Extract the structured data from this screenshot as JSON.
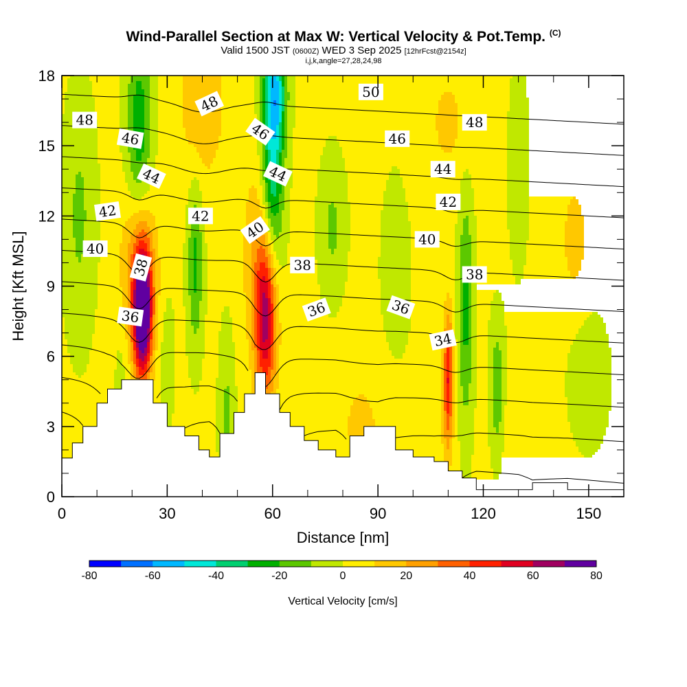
{
  "header": {
    "title": "Wind-Parallel Section at Max W: Vertical Velocity & Pot.Temp.",
    "copyright": "(C)",
    "valid_prefix": "Valid 1500 JST",
    "valid_utc": "(0600Z)",
    "valid_date": "WED 3 Sep 2025",
    "forecast": "[12hrFcst@2154z]",
    "indices": "i,j,k,angle=27,28,24,98"
  },
  "chart_data": {
    "type": "heatmap",
    "title": "Wind-Parallel Section at Max W: Vertical Velocity & Pot.Temp.",
    "xlabel": "Distance [nm]",
    "ylabel": "Height [Kft MSL]",
    "xlim": [
      0,
      160
    ],
    "ylim": [
      0,
      18
    ],
    "x_ticks": [
      0,
      30,
      60,
      90,
      120,
      150
    ],
    "x_tick_labels": [
      "0",
      "30",
      "60",
      "90",
      "120",
      "150"
    ],
    "y_ticks": [
      0,
      3,
      6,
      9,
      12,
      15,
      18
    ],
    "y_tick_labels": [
      "0",
      "3",
      "6",
      "9",
      "12",
      "15",
      "18"
    ],
    "colorbar": {
      "label": "Vertical Velocity [cm/s]",
      "levels": [
        -80,
        -70,
        -60,
        -50,
        -40,
        -30,
        -20,
        -10,
        0,
        10,
        20,
        30,
        40,
        50,
        60,
        70,
        80
      ],
      "tick_values": [
        -80,
        -60,
        -40,
        -20,
        0,
        20,
        40,
        60,
        80
      ],
      "tick_labels": [
        "-80",
        "-60",
        "-40",
        "-20",
        "0",
        "20",
        "40",
        "60",
        "80"
      ],
      "colors": [
        "#0000ff",
        "#0070ff",
        "#00b8ff",
        "#00e8d8",
        "#00d070",
        "#00b000",
        "#5cc800",
        "#c0e800",
        "#ffee00",
        "#ffc800",
        "#ffa000",
        "#ff6000",
        "#ff2000",
        "#e00020",
        "#a00060",
        "#6000a0"
      ]
    },
    "background_value": 2,
    "vertical_velocity_features": [
      {
        "x": 23,
        "z": 7.8,
        "sx": 1.8,
        "sz": 1.9,
        "w": 88
      },
      {
        "x": 22,
        "z": 9.8,
        "sx": 3.5,
        "sz": 2.5,
        "w": 30
      },
      {
        "x": 58,
        "z": 7.6,
        "sx": 2.2,
        "sz": 2.4,
        "w": 60
      },
      {
        "x": 56,
        "z": 10.5,
        "sx": 3.5,
        "sz": 3.0,
        "w": 15
      },
      {
        "x": 110,
        "z": 5.0,
        "sx": 1.0,
        "sz": 2.0,
        "w": 48
      },
      {
        "x": 40,
        "z": 17.0,
        "sx": 4.5,
        "sz": 2.5,
        "w": 18
      },
      {
        "x": 110,
        "z": 16.0,
        "sx": 5.0,
        "sz": 2.0,
        "w": 10
      },
      {
        "x": 146,
        "z": 11.0,
        "sx": 3.0,
        "sz": 2.0,
        "w": 12
      },
      {
        "x": 85,
        "z": 3.0,
        "sx": 5.0,
        "sz": 2.0,
        "w": 10
      },
      {
        "x": 100,
        "z": 2.0,
        "sx": 6.0,
        "sz": 1.5,
        "w": 8
      },
      {
        "x": 128,
        "z": 3.0,
        "sx": 4.0,
        "sz": 2.0,
        "w": 5
      },
      {
        "x": 60,
        "z": 14.5,
        "sx": 2.2,
        "sz": 3.5,
        "w": -45
      },
      {
        "x": 61,
        "z": 17.3,
        "sx": 2.2,
        "sz": 1.5,
        "w": -30
      },
      {
        "x": 22,
        "z": 15.5,
        "sx": 2.5,
        "sz": 3.0,
        "w": -30
      },
      {
        "x": 38,
        "z": 10.0,
        "sx": 1.5,
        "sz": 2.5,
        "w": -25
      },
      {
        "x": 115,
        "z": 8.0,
        "sx": 1.5,
        "sz": 3.5,
        "w": -25
      },
      {
        "x": 124,
        "z": 4.5,
        "sx": 1.5,
        "sz": 2.0,
        "w": -22
      },
      {
        "x": 5,
        "z": 12.0,
        "sx": 3.0,
        "sz": 3.5,
        "w": -14
      },
      {
        "x": 47,
        "z": 3.5,
        "sx": 1.5,
        "sz": 2.5,
        "w": -14
      },
      {
        "x": 77,
        "z": 11.5,
        "sx": 2.5,
        "sz": 2.0,
        "w": -14
      },
      {
        "x": 130,
        "z": 14.0,
        "sx": 2.0,
        "sz": 3.0,
        "w": -8
      },
      {
        "x": 150,
        "z": 5.0,
        "sx": 4.0,
        "sz": 2.0,
        "w": -8
      },
      {
        "x": 30,
        "z": 6.0,
        "sx": 1.5,
        "sz": 2.0,
        "w": -8
      },
      {
        "x": 17,
        "z": 5.5,
        "sx": 1.5,
        "sz": 2.0,
        "w": -6
      },
      {
        "x": 95,
        "z": 9.5,
        "sx": 4.0,
        "sz": 4.0,
        "w": -4
      }
    ],
    "theta_levels": [
      26,
      28,
      30,
      32,
      34,
      36,
      38,
      40,
      42,
      44,
      46,
      48,
      50
    ],
    "theta_labels": [
      {
        "text": "48",
        "x": 6.5,
        "z": 16.1,
        "angle": 0
      },
      {
        "text": "46",
        "x": 19.5,
        "z": 15.3,
        "angle": 10
      },
      {
        "text": "44",
        "x": 25.5,
        "z": 13.7,
        "angle": 25
      },
      {
        "text": "42",
        "x": 13.0,
        "z": 12.2,
        "angle": -8
      },
      {
        "text": "40",
        "x": 9.5,
        "z": 10.6,
        "angle": 0
      },
      {
        "text": "38",
        "x": 22.5,
        "z": 9.8,
        "angle": -75
      },
      {
        "text": "36",
        "x": 19.5,
        "z": 7.7,
        "angle": 8
      },
      {
        "text": "48",
        "x": 42.0,
        "z": 16.8,
        "angle": -25
      },
      {
        "text": "42",
        "x": 39.5,
        "z": 12.0,
        "angle": 0
      },
      {
        "text": "46",
        "x": 56.5,
        "z": 15.6,
        "angle": 35
      },
      {
        "text": "44",
        "x": 61.5,
        "z": 13.8,
        "angle": 25
      },
      {
        "text": "40",
        "x": 55.0,
        "z": 11.4,
        "angle": -35
      },
      {
        "text": "38",
        "x": 68.5,
        "z": 9.9,
        "angle": 0
      },
      {
        "text": "36",
        "x": 72.5,
        "z": 8.0,
        "angle": -20
      },
      {
        "text": "50",
        "x": 88.0,
        "z": 17.3,
        "angle": 0
      },
      {
        "text": "46",
        "x": 95.5,
        "z": 15.3,
        "angle": 0
      },
      {
        "text": "48",
        "x": 117.5,
        "z": 16.0,
        "angle": 0
      },
      {
        "text": "44",
        "x": 108.5,
        "z": 14.0,
        "angle": 0
      },
      {
        "text": "42",
        "x": 110.0,
        "z": 12.6,
        "angle": 0
      },
      {
        "text": "40",
        "x": 104.0,
        "z": 11.0,
        "angle": 0
      },
      {
        "text": "36",
        "x": 96.5,
        "z": 8.1,
        "angle": 20
      },
      {
        "text": "38",
        "x": 117.5,
        "z": 9.5,
        "angle": 0
      },
      {
        "text": "34",
        "x": 108.5,
        "z": 6.7,
        "angle": -12
      }
    ],
    "terrain": [
      [
        0,
        1.65
      ],
      [
        3,
        2.3
      ],
      [
        6,
        3.0
      ],
      [
        10,
        4.0
      ],
      [
        13,
        4.6
      ],
      [
        17,
        5.0
      ],
      [
        26,
        4.0
      ],
      [
        30,
        3.0
      ],
      [
        35,
        2.6
      ],
      [
        39,
        2.0
      ],
      [
        42,
        1.7
      ],
      [
        45,
        2.7
      ],
      [
        49,
        3.6
      ],
      [
        52,
        4.4
      ],
      [
        55,
        5.3
      ],
      [
        58,
        4.4
      ],
      [
        62,
        3.6
      ],
      [
        65,
        3.0
      ],
      [
        69,
        2.4
      ],
      [
        73,
        2.0
      ],
      [
        78,
        1.7
      ],
      [
        82,
        2.6
      ],
      [
        86,
        3.0
      ],
      [
        90,
        3.0
      ],
      [
        95,
        2.0
      ],
      [
        100,
        1.7
      ],
      [
        106,
        1.5
      ],
      [
        110,
        1.1
      ],
      [
        114,
        0.8
      ],
      [
        118,
        0.3
      ],
      [
        130,
        0.3
      ],
      [
        134,
        0.6
      ],
      [
        144,
        0.3
      ],
      [
        160,
        0.3
      ]
    ]
  }
}
